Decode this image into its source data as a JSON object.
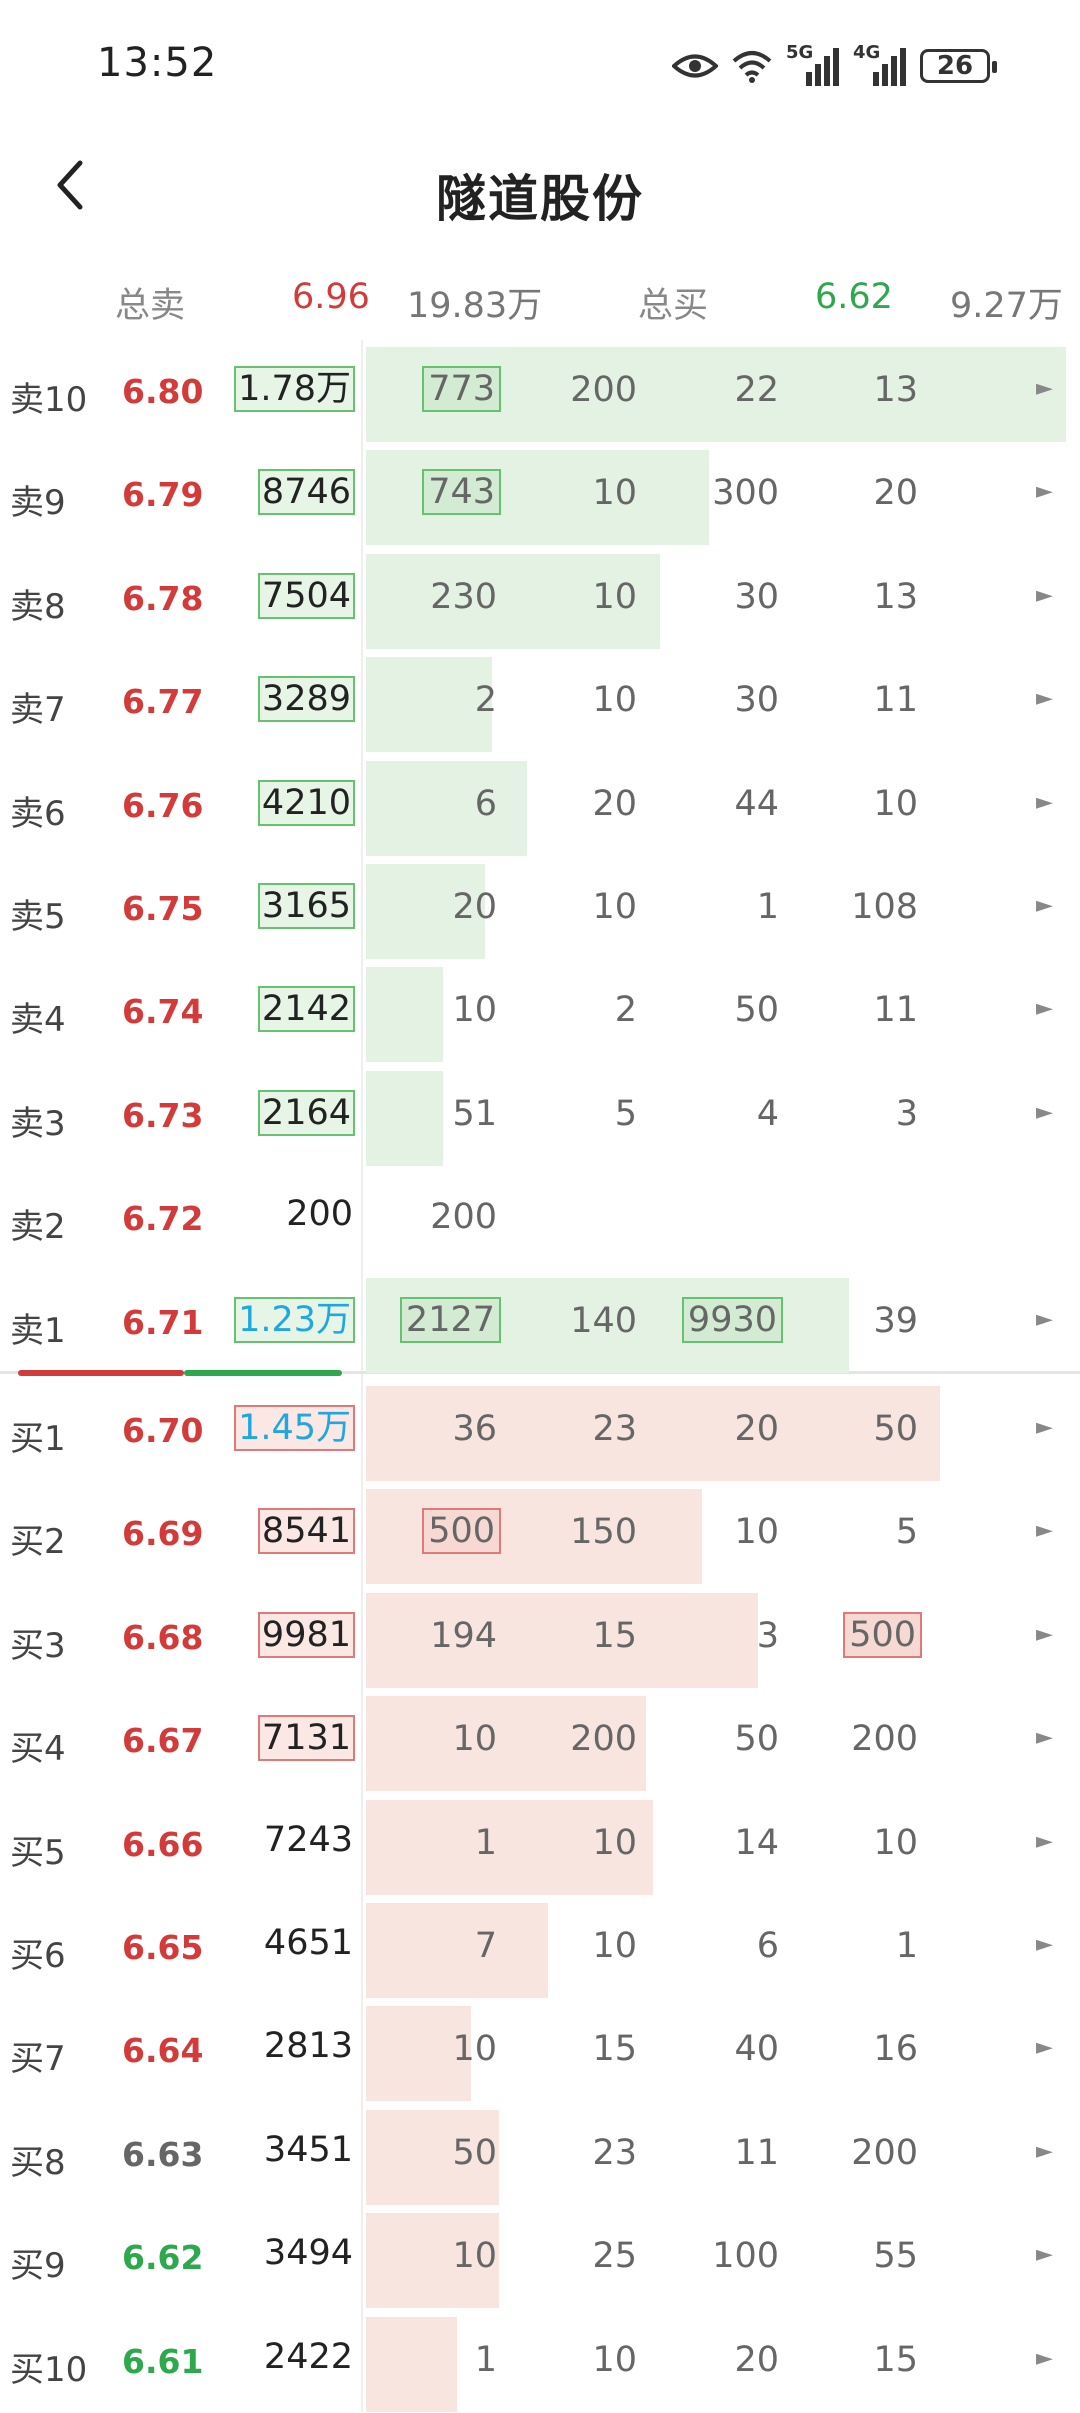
{
  "status_bar": {
    "time": "13:52",
    "net1": "5G",
    "net2": "4G",
    "battery": "26"
  },
  "header": {
    "title": "隧道股份"
  },
  "summary": {
    "sell_label": "总卖",
    "sell_price": "6.96",
    "sell_vol": "19.83万",
    "buy_label": "总买",
    "buy_price": "6.62",
    "buy_vol": "9.27万"
  },
  "asks": [
    {
      "label": "卖10",
      "price": "6.80",
      "vol": "1.78万",
      "vol_style": "box",
      "bar": 1.0,
      "q": [
        "773",
        "200",
        "22",
        "13"
      ],
      "qbox": [
        0
      ],
      "arrow": "►"
    },
    {
      "label": "卖9",
      "price": "6.79",
      "vol": "8746",
      "vol_style": "box",
      "bar": 0.49,
      "q": [
        "743",
        "10",
        "300",
        "20"
      ],
      "qbox": [
        0
      ],
      "arrow": "►"
    },
    {
      "label": "卖8",
      "price": "6.78",
      "vol": "7504",
      "vol_style": "box",
      "bar": 0.42,
      "q": [
        "230",
        "10",
        "30",
        "13"
      ],
      "qbox": [],
      "arrow": "►"
    },
    {
      "label": "卖7",
      "price": "6.77",
      "vol": "3289",
      "vol_style": "box",
      "bar": 0.18,
      "q": [
        "2",
        "10",
        "30",
        "11"
      ],
      "qbox": [],
      "arrow": "►"
    },
    {
      "label": "卖6",
      "price": "6.76",
      "vol": "4210",
      "vol_style": "box",
      "bar": 0.23,
      "q": [
        "6",
        "20",
        "44",
        "10"
      ],
      "qbox": [],
      "arrow": "►"
    },
    {
      "label": "卖5",
      "price": "6.75",
      "vol": "3165",
      "vol_style": "box",
      "bar": 0.17,
      "q": [
        "20",
        "10",
        "1",
        "108"
      ],
      "qbox": [],
      "arrow": "►"
    },
    {
      "label": "卖4",
      "price": "6.74",
      "vol": "2142",
      "vol_style": "box",
      "bar": 0.11,
      "q": [
        "10",
        "2",
        "50",
        "11"
      ],
      "qbox": [],
      "arrow": "►"
    },
    {
      "label": "卖3",
      "price": "6.73",
      "vol": "2164",
      "vol_style": "box",
      "bar": 0.11,
      "q": [
        "51",
        "5",
        "4",
        "3"
      ],
      "qbox": [],
      "arrow": "►"
    },
    {
      "label": "卖2",
      "price": "6.72",
      "vol": "200",
      "vol_style": "plain",
      "bar": 0.0,
      "q": [
        "200",
        "",
        "",
        ""
      ],
      "qbox": [],
      "arrow": ""
    },
    {
      "label": "卖1",
      "price": "6.71",
      "vol": "1.23万",
      "vol_style": "blue-s",
      "bar": 0.69,
      "q": [
        "2127",
        "140",
        "9930",
        "39"
      ],
      "qbox": [
        0,
        2
      ],
      "arrow": "►"
    }
  ],
  "bids": [
    {
      "label": "买1",
      "price": "6.70",
      "vol": "1.45万",
      "vol_style": "blue-b",
      "bar": 0.82,
      "q": [
        "36",
        "23",
        "20",
        "50"
      ],
      "qbox": [],
      "arrow": "►"
    },
    {
      "label": "买2",
      "price": "6.69",
      "vol": "8541",
      "vol_style": "box",
      "bar": 0.48,
      "q": [
        "500",
        "150",
        "10",
        "5"
      ],
      "qbox": [
        0
      ],
      "arrow": "►"
    },
    {
      "label": "买3",
      "price": "6.68",
      "vol": "9981",
      "vol_style": "box",
      "bar": 0.56,
      "q": [
        "194",
        "15",
        "3",
        "500"
      ],
      "qbox": [
        3
      ],
      "arrow": "►"
    },
    {
      "label": "买4",
      "price": "6.67",
      "vol": "7131",
      "vol_style": "box",
      "bar": 0.4,
      "q": [
        "10",
        "200",
        "50",
        "200"
      ],
      "qbox": [],
      "arrow": "►"
    },
    {
      "label": "买5",
      "price": "6.66",
      "vol": "7243",
      "vol_style": "plain",
      "bar": 0.41,
      "q": [
        "1",
        "10",
        "14",
        "10"
      ],
      "qbox": [],
      "arrow": "►"
    },
    {
      "label": "买6",
      "price": "6.65",
      "vol": "4651",
      "vol_style": "plain",
      "bar": 0.26,
      "q": [
        "7",
        "10",
        "6",
        "1"
      ],
      "qbox": [],
      "arrow": "►"
    },
    {
      "label": "买7",
      "price": "6.64",
      "vol": "2813",
      "vol_style": "plain",
      "bar": 0.15,
      "q": [
        "10",
        "15",
        "40",
        "16"
      ],
      "qbox": [],
      "arrow": "►"
    },
    {
      "label": "买8",
      "price": "6.63",
      "vol": "3451",
      "vol_style": "plain",
      "bar": 0.19,
      "q": [
        "50",
        "23",
        "11",
        "200"
      ],
      "qbox": [],
      "arrow": "►"
    },
    {
      "label": "买9",
      "price": "6.62",
      "vol": "3494",
      "vol_style": "plain",
      "bar": 0.19,
      "q": [
        "10",
        "25",
        "100",
        "55"
      ],
      "qbox": [],
      "arrow": "►"
    },
    {
      "label": "买10",
      "price": "6.61",
      "vol": "2422",
      "vol_style": "plain",
      "bar": 0.13,
      "q": [
        "1",
        "10",
        "20",
        "15"
      ],
      "qbox": [],
      "arrow": "►"
    }
  ],
  "colors": {
    "ask_price": "#d33b3b",
    "neutral_price": "#666666",
    "low_price": "#2da84d"
  }
}
